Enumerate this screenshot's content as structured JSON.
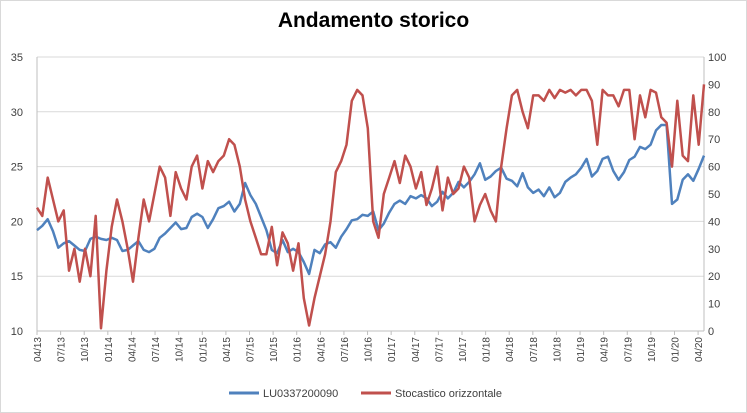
{
  "chart_data": {
    "type": "line",
    "title": "Andamento storico",
    "x_ticks": [
      "04/13",
      "07/13",
      "10/13",
      "01/14",
      "04/14",
      "07/14",
      "10/14",
      "01/15",
      "04/15",
      "07/15",
      "10/15",
      "01/16",
      "04/16",
      "07/16",
      "10/16",
      "01/17",
      "04/17",
      "07/17",
      "10/17",
      "01/18",
      "04/18",
      "07/18",
      "10/18",
      "01/19",
      "04/19",
      "07/19",
      "10/19",
      "01/20",
      "04/20"
    ],
    "y_left": {
      "min": 10,
      "max": 35,
      "ticks": [
        10,
        15,
        20,
        25,
        30,
        35
      ]
    },
    "y_right": {
      "min": 0,
      "max": 100,
      "ticks": [
        0,
        10,
        20,
        30,
        40,
        50,
        60,
        70,
        80,
        90,
        100
      ]
    },
    "grid": "horizontal",
    "legend": "bottom",
    "series": [
      {
        "name": "LU0337200090",
        "axis": "left",
        "color": "#4f81bd",
        "values": [
          19.2,
          19.6,
          20.2,
          19.1,
          17.6,
          18.0,
          18.2,
          17.8,
          17.4,
          17.3,
          18.4,
          18.6,
          18.4,
          18.3,
          18.5,
          18.3,
          17.3,
          17.4,
          17.8,
          18.2,
          17.4,
          17.2,
          17.5,
          18.5,
          18.9,
          19.4,
          19.9,
          19.3,
          19.4,
          20.4,
          20.7,
          20.4,
          19.4,
          20.2,
          21.2,
          21.4,
          21.8,
          20.9,
          21.6,
          23.5,
          22.4,
          21.6,
          20.4,
          19.2,
          17.4,
          17.1,
          18.3,
          17.2,
          17.5,
          17.2,
          16.3,
          15.2,
          17.4,
          17.1,
          17.9,
          18.1,
          17.6,
          18.6,
          19.3,
          20.1,
          20.2,
          20.6,
          20.5,
          20.9,
          19.2,
          19.8,
          20.8,
          21.6,
          21.9,
          21.6,
          22.3,
          22.1,
          22.4,
          22.1,
          21.4,
          21.8,
          22.7,
          22.1,
          22.6,
          23.6,
          23.1,
          23.6,
          24.3,
          25.3,
          23.8,
          24.1,
          24.6,
          24.9,
          23.9,
          23.7,
          23.2,
          24.4,
          23.1,
          22.6,
          22.9,
          22.3,
          23.1,
          22.2,
          22.6,
          23.6,
          24.0,
          24.3,
          24.9,
          25.7,
          24.1,
          24.6,
          25.7,
          25.9,
          24.6,
          23.8,
          24.5,
          25.6,
          25.9,
          26.8,
          26.6,
          27.0,
          28.3,
          28.8,
          28.8,
          21.6,
          22.0,
          23.8,
          24.3,
          23.7,
          24.8,
          26.0
        ]
      },
      {
        "name": "Stocastico orizzontale",
        "axis": "right",
        "color": "#c0504d",
        "values": [
          45,
          42,
          56,
          48,
          40,
          44,
          22,
          30,
          18,
          30,
          20,
          42,
          1,
          22,
          38,
          48,
          40,
          30,
          18,
          34,
          48,
          40,
          50,
          60,
          56,
          42,
          58,
          52,
          48,
          60,
          64,
          52,
          62,
          58,
          62,
          64,
          70,
          68,
          60,
          48,
          40,
          34,
          28,
          28,
          38,
          24,
          36,
          32,
          22,
          32,
          12,
          2,
          12,
          20,
          28,
          40,
          58,
          62,
          68,
          84,
          88,
          86,
          74,
          40,
          34,
          50,
          56,
          62,
          54,
          64,
          60,
          52,
          58,
          46,
          52,
          60,
          44,
          56,
          50,
          52,
          60,
          56,
          40,
          46,
          50,
          44,
          40,
          60,
          74,
          86,
          88,
          80,
          74,
          86,
          86,
          84,
          88,
          85,
          88,
          87,
          88,
          86,
          88,
          88,
          84,
          68,
          88,
          86,
          86,
          82,
          88,
          88,
          70,
          86,
          78,
          88,
          87,
          78,
          76,
          60,
          84,
          64,
          62,
          86,
          68,
          90
        ]
      }
    ]
  }
}
